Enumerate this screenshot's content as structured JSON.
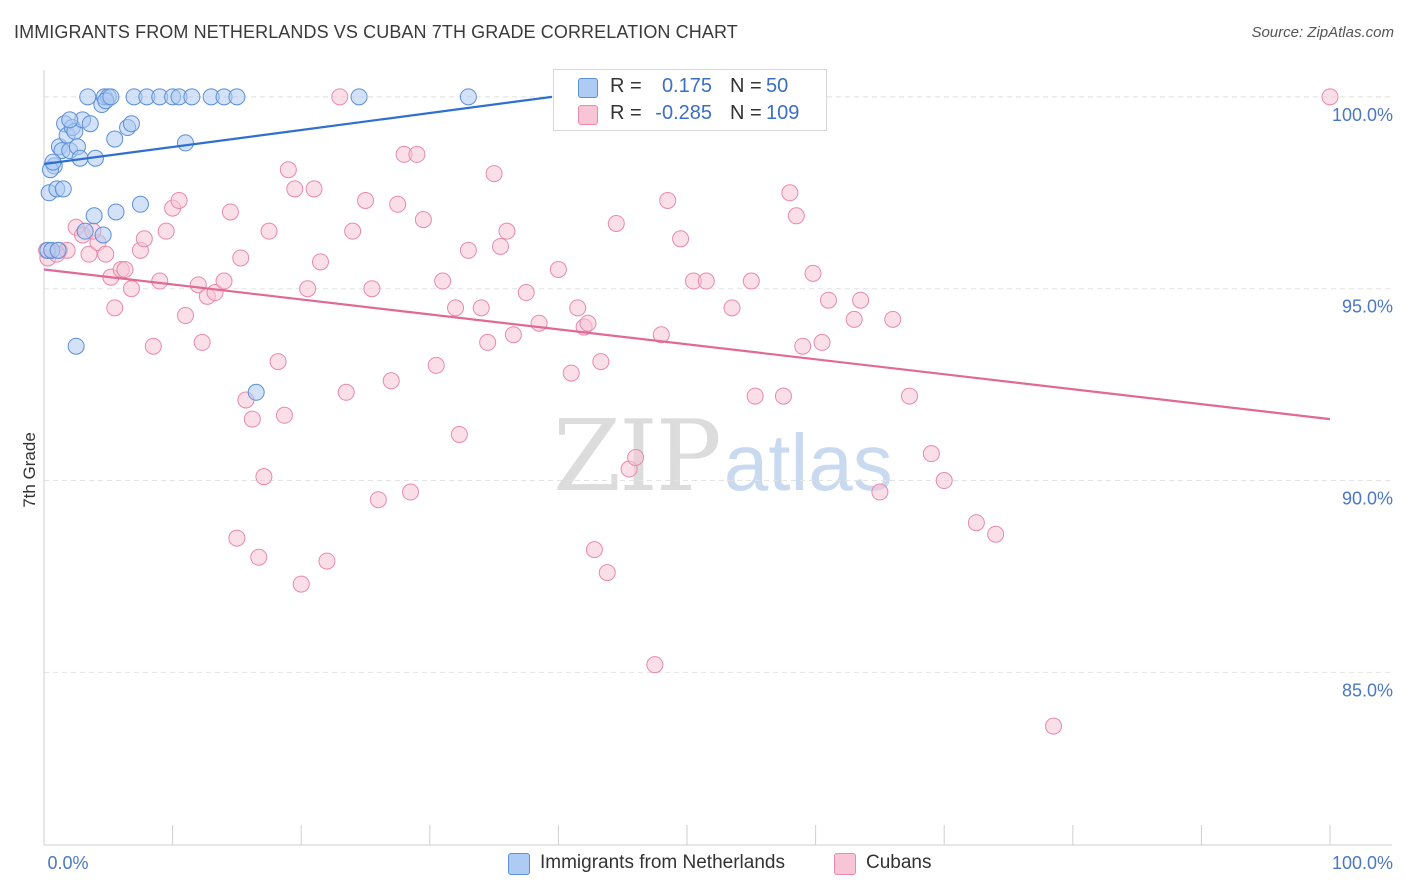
{
  "title": "IMMIGRANTS FROM NETHERLANDS VS CUBAN 7TH GRADE CORRELATION CHART",
  "source": "Source: ZipAtlas.com",
  "watermark": {
    "a": "ZIP",
    "b": "atlas"
  },
  "legend": {
    "rows": [
      {
        "r_label": "R =",
        "r_value": "0.175",
        "n_label": "N =",
        "n_value": "50"
      },
      {
        "r_label": "R =",
        "r_value": "-0.285",
        "n_label": "N =",
        "n_value": "109"
      }
    ]
  },
  "bottom_legend": [
    "Immigrants from Netherlands",
    "Cubans"
  ],
  "colors": {
    "blue_fill": "#aecbf3",
    "blue_stroke": "#5b8fd6",
    "blue_line": "#2f6fd0",
    "pink_fill": "#f7c5d5",
    "pink_stroke": "#e88aab",
    "pink_line": "#e06a95",
    "grid": "#e3e3e3",
    "tick_text": "#4a78c2"
  },
  "chart_data": {
    "type": "scatter",
    "title": "IMMIGRANTS FROM NETHERLANDS VS CUBAN 7TH GRADE CORRELATION CHART",
    "xlabel": "",
    "ylabel": "7th Grade",
    "xlim": [
      0,
      100
    ],
    "ylim": [
      80.5,
      100.7
    ],
    "x_tick_labels": [
      "0.0%",
      "100.0%"
    ],
    "y_ticks": [
      85,
      90,
      95,
      100
    ],
    "y_tick_labels": [
      "85.0%",
      "90.0%",
      "95.0%",
      "100.0%"
    ],
    "grid": true,
    "series": [
      {
        "name": "Immigrants from Netherlands",
        "R": 0.175,
        "N": 50,
        "trend": {
          "x": [
            0,
            39.5
          ],
          "y": [
            98.25,
            100.0
          ]
        },
        "points": [
          [
            0.3,
            96.0
          ],
          [
            0.6,
            96.0
          ],
          [
            0.4,
            97.5
          ],
          [
            0.8,
            98.2
          ],
          [
            1.0,
            97.6
          ],
          [
            1.2,
            98.7
          ],
          [
            1.4,
            98.6
          ],
          [
            1.6,
            99.3
          ],
          [
            1.8,
            99.0
          ],
          [
            2.0,
            98.6
          ],
          [
            2.2,
            99.2
          ],
          [
            2.4,
            99.1
          ],
          [
            2.6,
            98.7
          ],
          [
            2.8,
            98.4
          ],
          [
            3.0,
            99.4
          ],
          [
            3.2,
            96.5
          ],
          [
            1.5,
            97.6
          ],
          [
            3.6,
            99.3
          ],
          [
            4.0,
            98.4
          ],
          [
            4.5,
            99.8
          ],
          [
            3.4,
            100.0
          ],
          [
            4.7,
            100.0
          ],
          [
            5.0,
            100.0
          ],
          [
            4.8,
            99.9
          ],
          [
            5.5,
            98.9
          ],
          [
            6.5,
            99.2
          ],
          [
            6.8,
            99.3
          ],
          [
            7.0,
            100.0
          ],
          [
            8.0,
            100.0
          ],
          [
            9.0,
            100.0
          ],
          [
            10.0,
            100.0
          ],
          [
            10.5,
            100.0
          ],
          [
            11.0,
            98.8
          ],
          [
            11.5,
            100.0
          ],
          [
            13.0,
            100.0
          ],
          [
            14.0,
            100.0
          ],
          [
            15.0,
            100.0
          ],
          [
            3.9,
            96.9
          ],
          [
            4.6,
            96.4
          ],
          [
            5.6,
            97.0
          ],
          [
            7.5,
            97.2
          ],
          [
            2.5,
            93.5
          ],
          [
            16.5,
            92.3
          ],
          [
            24.5,
            100.0
          ],
          [
            33.0,
            100.0
          ],
          [
            0.5,
            98.1
          ],
          [
            1.1,
            96.0
          ],
          [
            0.7,
            98.3
          ],
          [
            2.0,
            99.4
          ],
          [
            5.2,
            100.0
          ]
        ]
      },
      {
        "name": "Cubans",
        "R": -0.285,
        "N": 109,
        "trend": {
          "x": [
            0,
            100
          ],
          "y": [
            95.5,
            91.6
          ]
        },
        "points": [
          [
            0.3,
            95.8
          ],
          [
            1.2,
            96.0
          ],
          [
            1.8,
            96.0
          ],
          [
            2.5,
            96.6
          ],
          [
            3.0,
            96.4
          ],
          [
            3.5,
            95.9
          ],
          [
            4.2,
            96.2
          ],
          [
            4.8,
            95.9
          ],
          [
            5.2,
            95.3
          ],
          [
            5.5,
            94.5
          ],
          [
            6.0,
            95.5
          ],
          [
            6.3,
            95.5
          ],
          [
            6.8,
            95.0
          ],
          [
            7.5,
            96.0
          ],
          [
            7.8,
            96.3
          ],
          [
            8.5,
            93.5
          ],
          [
            9.0,
            95.2
          ],
          [
            9.5,
            96.5
          ],
          [
            10.0,
            97.1
          ],
          [
            10.5,
            97.3
          ],
          [
            11.0,
            94.3
          ],
          [
            12.0,
            95.1
          ],
          [
            12.3,
            93.6
          ],
          [
            12.7,
            94.8
          ],
          [
            13.3,
            94.9
          ],
          [
            14.0,
            95.2
          ],
          [
            14.5,
            97.0
          ],
          [
            15.0,
            88.5
          ],
          [
            15.3,
            95.8
          ],
          [
            15.7,
            92.1
          ],
          [
            16.2,
            91.6
          ],
          [
            16.7,
            88.0
          ],
          [
            17.1,
            90.1
          ],
          [
            17.5,
            96.5
          ],
          [
            18.2,
            93.1
          ],
          [
            18.7,
            91.7
          ],
          [
            19.0,
            98.1
          ],
          [
            19.5,
            97.6
          ],
          [
            20.0,
            87.3
          ],
          [
            20.5,
            95.0
          ],
          [
            21.0,
            97.6
          ],
          [
            21.5,
            95.7
          ],
          [
            22.0,
            87.9
          ],
          [
            23.0,
            100.0
          ],
          [
            23.5,
            92.3
          ],
          [
            24.0,
            96.5
          ],
          [
            25.0,
            97.3
          ],
          [
            25.5,
            95.0
          ],
          [
            26.0,
            89.5
          ],
          [
            27.0,
            92.6
          ],
          [
            27.5,
            97.2
          ],
          [
            28.0,
            98.5
          ],
          [
            28.5,
            89.7
          ],
          [
            29.0,
            98.5
          ],
          [
            29.5,
            96.8
          ],
          [
            30.5,
            93.0
          ],
          [
            31.0,
            95.2
          ],
          [
            32.0,
            94.5
          ],
          [
            32.3,
            91.2
          ],
          [
            33.0,
            96.0
          ],
          [
            34.0,
            94.5
          ],
          [
            34.5,
            93.6
          ],
          [
            35.0,
            98.0
          ],
          [
            35.5,
            96.1
          ],
          [
            36.0,
            96.5
          ],
          [
            36.5,
            93.8
          ],
          [
            37.5,
            94.9
          ],
          [
            38.5,
            94.1
          ],
          [
            40.0,
            95.5
          ],
          [
            41.0,
            92.8
          ],
          [
            41.5,
            94.5
          ],
          [
            42.0,
            94.0
          ],
          [
            42.3,
            94.1
          ],
          [
            42.8,
            88.2
          ],
          [
            43.3,
            93.1
          ],
          [
            43.8,
            87.6
          ],
          [
            44.5,
            96.7
          ],
          [
            45.5,
            90.3
          ],
          [
            46.0,
            90.6
          ],
          [
            47.5,
            85.2
          ],
          [
            48.0,
            93.8
          ],
          [
            48.5,
            97.3
          ],
          [
            49.5,
            96.3
          ],
          [
            50.5,
            95.2
          ],
          [
            51.5,
            95.2
          ],
          [
            53.5,
            94.5
          ],
          [
            55.0,
            95.2
          ],
          [
            55.3,
            92.2
          ],
          [
            57.5,
            92.2
          ],
          [
            58.0,
            97.5
          ],
          [
            58.5,
            96.9
          ],
          [
            59.0,
            93.5
          ],
          [
            59.8,
            95.4
          ],
          [
            60.5,
            93.6
          ],
          [
            61.0,
            94.7
          ],
          [
            63.0,
            94.2
          ],
          [
            63.5,
            94.7
          ],
          [
            65.0,
            89.7
          ],
          [
            66.0,
            94.2
          ],
          [
            67.3,
            92.2
          ],
          [
            69.0,
            90.7
          ],
          [
            70.0,
            90.0
          ],
          [
            72.5,
            88.9
          ],
          [
            74.0,
            88.6
          ],
          [
            78.5,
            83.6
          ],
          [
            100.0,
            100.0
          ],
          [
            1.0,
            95.9
          ],
          [
            0.2,
            96.0
          ],
          [
            3.8,
            96.5
          ]
        ]
      }
    ]
  }
}
